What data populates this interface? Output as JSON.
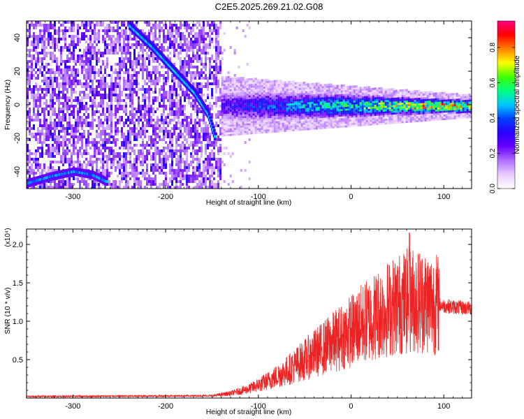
{
  "title": "C2E5.2025.269.21.02.G08",
  "chart_data": [
    {
      "type": "heatmap",
      "name": "spectrogram",
      "xlabel": "Height of straight line (km)",
      "ylabel": "Frequency (Hz)",
      "xlim": [
        -350,
        130
      ],
      "ylim": [
        -50,
        50
      ],
      "xticks": [
        -300,
        -200,
        -100,
        0,
        100
      ],
      "yticks": [
        -40,
        -20,
        0,
        20,
        40
      ],
      "colorbar": {
        "label": "Normalized spectral amplitude",
        "range": [
          0.0,
          0.95
        ],
        "ticks": [
          0.0,
          0.2,
          0.4,
          0.6,
          0.8
        ],
        "tick_labels": [
          "0.0",
          "0.2",
          "0.4",
          "0.6",
          "0.8"
        ],
        "colormap": [
          "#ffffff",
          "#e8ccff",
          "#b070ff",
          "#6a00ff",
          "#2a00ff",
          "#0040ff",
          "#00c8ff",
          "#00ff80",
          "#40ff00",
          "#ffff00",
          "#ff8000",
          "#ff0000",
          "#ff0080"
        ]
      },
      "features": {
        "noise_region_x": [
          -350,
          -140
        ],
        "noise_amplitude": [
          0.1,
          0.35
        ],
        "descending_trace": {
          "x": [
            -240,
            -215,
            -190,
            -170,
            -155,
            -148
          ],
          "y": [
            48,
            35,
            20,
            8,
            -5,
            -18
          ],
          "amplitude": 0.35
        },
        "lower_trace": {
          "x": [
            -350,
            -325,
            -300,
            -280,
            -265
          ],
          "y": [
            -46,
            -42,
            -39,
            -41,
            -45
          ],
          "amplitude": 0.3
        },
        "carrier_band": {
          "x": [
            -140,
            130
          ],
          "y_center": 0,
          "y_halfwidth_start": 8,
          "y_halfwidth_end": 3,
          "amplitude_start": 0.3,
          "amplitude_end": 0.9
        }
      }
    },
    {
      "type": "line",
      "name": "snr",
      "xlabel": "Height of straight line (km)",
      "ylabel": "SNR (10 * v/v)",
      "multiplier_label": "(x10⁴)",
      "xlim": [
        -350,
        130
      ],
      "ylim": [
        0,
        2.2
      ],
      "xticks": [
        -300,
        -200,
        -100,
        0,
        100
      ],
      "yticks": [
        0.5,
        1.0,
        1.5,
        2.0
      ],
      "ytick_labels": [
        "0.5",
        "1.0",
        "1.5",
        "2.0"
      ],
      "color": "#ee2222",
      "envelope": {
        "x": [
          -350,
          -150,
          -130,
          -110,
          -90,
          -70,
          -50,
          -30,
          -10,
          10,
          30,
          50,
          65,
          80,
          100,
          115,
          130
        ],
        "y": [
          0.02,
          0.03,
          0.06,
          0.12,
          0.22,
          0.35,
          0.5,
          0.65,
          0.8,
          0.95,
          1.1,
          1.22,
          1.28,
          1.26,
          1.2,
          1.18,
          1.17
        ]
      },
      "peak": {
        "x": 63,
        "y": 2.15
      }
    }
  ]
}
